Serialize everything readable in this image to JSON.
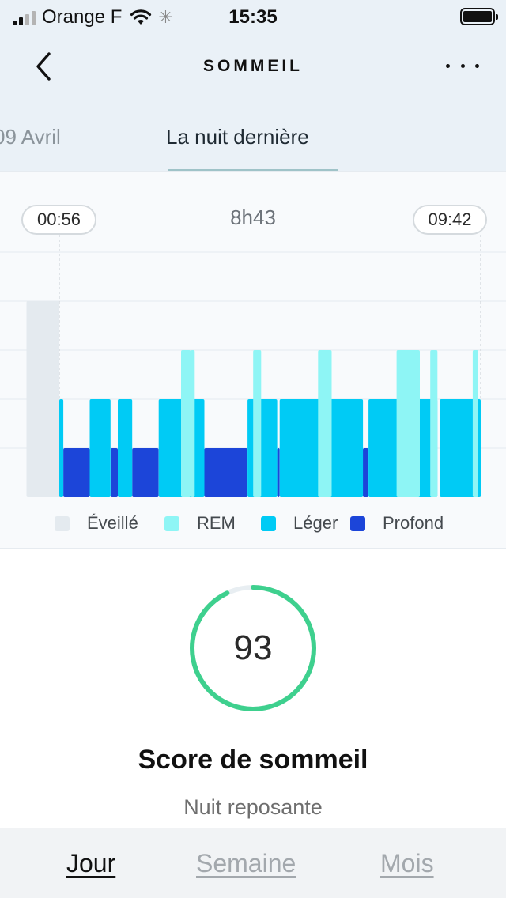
{
  "status_bar": {
    "carrier": "Orange F",
    "time": "15:35"
  },
  "navbar": {
    "title": "SOMMEIL"
  },
  "date_tabs": {
    "previous": "09 Avril",
    "current": "La nuit dernière"
  },
  "sleep_chart": {
    "start_time": "00:56",
    "end_time": "09:42",
    "duration": "8h43",
    "stage_colors": {
      "awake": "#e4eaef",
      "rem": "#8ef5f5",
      "light": "#00cbf5",
      "deep": "#1c45d9"
    },
    "legend": [
      {
        "key": "awake",
        "label": "Éveillé",
        "color": "#e4eaef"
      },
      {
        "key": "rem",
        "label": "REM",
        "color": "#8ef5f5"
      },
      {
        "key": "light",
        "label": "Léger",
        "color": "#00cbf5"
      },
      {
        "key": "deep",
        "label": "Profond",
        "color": "#1c45d9"
      }
    ]
  },
  "chart_data": {
    "type": "bar",
    "x_range": [
      "00:56",
      "09:42"
    ],
    "y_levels": [
      "Profond",
      "Léger",
      "REM",
      "Éveillé"
    ],
    "series": [
      {
        "name": "Éveillé",
        "values": [
          {
            "start": "00:15",
            "end": "00:56"
          }
        ]
      },
      {
        "name": "REM",
        "values": [
          {
            "start": "03:28",
            "end": "03:40"
          },
          {
            "start": "03:40",
            "end": "03:45"
          },
          {
            "start": "04:58",
            "end": "05:08"
          },
          {
            "start": "06:19",
            "end": "06:36"
          },
          {
            "start": "07:57",
            "end": "08:26"
          },
          {
            "start": "08:39",
            "end": "08:48"
          },
          {
            "start": "09:32",
            "end": "09:39"
          }
        ]
      },
      {
        "name": "Léger",
        "values": [
          {
            "start": "00:56",
            "end": "01:01"
          },
          {
            "start": "01:34",
            "end": "02:00"
          },
          {
            "start": "02:09",
            "end": "02:27"
          },
          {
            "start": "03:00",
            "end": "03:57"
          },
          {
            "start": "04:51",
            "end": "05:28"
          },
          {
            "start": "05:31",
            "end": "07:15"
          },
          {
            "start": "07:22",
            "end": "08:48"
          },
          {
            "start": "08:51",
            "end": "09:42"
          }
        ]
      },
      {
        "name": "Profond",
        "values": [
          {
            "start": "01:01",
            "end": "01:34"
          },
          {
            "start": "02:00",
            "end": "02:09"
          },
          {
            "start": "02:27",
            "end": "03:00"
          },
          {
            "start": "03:57",
            "end": "04:51"
          },
          {
            "start": "05:28",
            "end": "05:31"
          },
          {
            "start": "07:15",
            "end": "07:22"
          }
        ]
      }
    ]
  },
  "score": {
    "value": "93",
    "fraction": 0.93,
    "title": "Score de sommeil",
    "subtitle": "Nuit reposante",
    "ring_color": "#3ed08e",
    "track_color": "#e8eef2"
  },
  "bottom_tabs": {
    "day": "Jour",
    "week": "Semaine",
    "month": "Mois"
  }
}
